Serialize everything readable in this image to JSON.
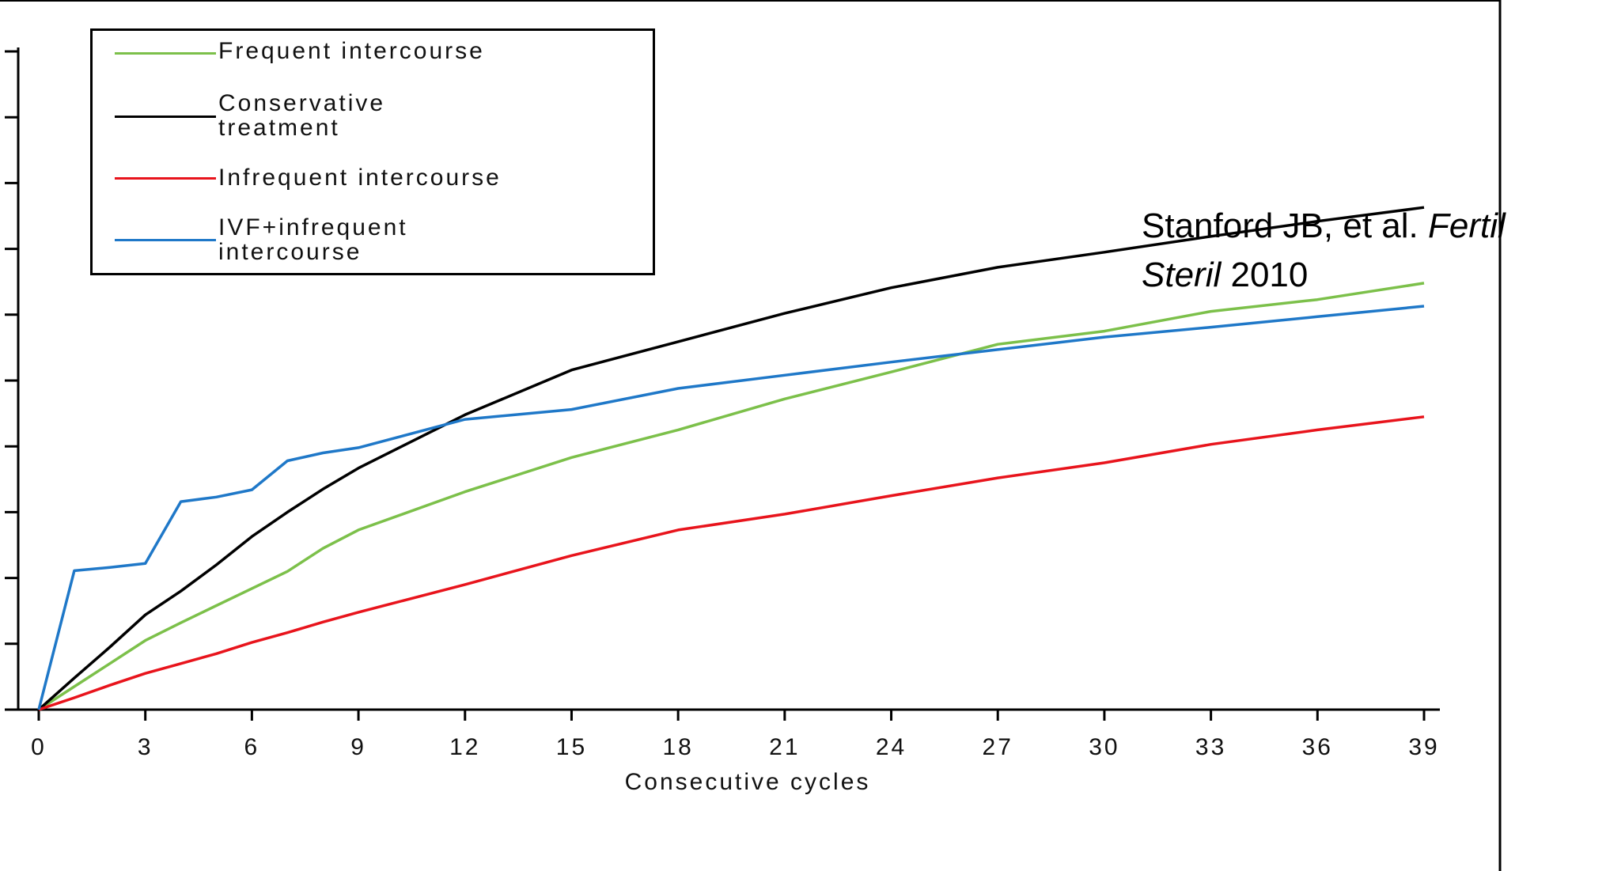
{
  "chart_data": {
    "type": "line",
    "xlabel": "Consecutive cycles",
    "x": [
      0,
      1,
      2,
      3,
      4,
      5,
      6,
      7,
      8,
      9,
      12,
      15,
      18,
      21,
      24,
      27,
      30,
      33,
      36,
      39
    ],
    "series": [
      {
        "name": "Frequent intercourse",
        "color": "#7cc04a",
        "values": [
          0,
          0.35,
          0.7,
          1.05,
          1.32,
          1.58,
          1.84,
          2.1,
          2.45,
          2.73,
          3.31,
          3.83,
          4.25,
          4.72,
          5.13,
          5.55,
          5.75,
          6.05,
          6.23,
          6.48
        ]
      },
      {
        "name": "Conservative\ntreatment",
        "color": "#000000",
        "values": [
          0,
          0.48,
          0.95,
          1.44,
          1.8,
          2.2,
          2.63,
          3.0,
          3.35,
          3.67,
          4.48,
          5.16,
          5.59,
          6.02,
          6.41,
          6.72,
          6.95,
          7.19,
          7.42,
          7.63
        ]
      },
      {
        "name": "Infrequent intercourse",
        "color": "#e8141c",
        "values": [
          0,
          0.18,
          0.37,
          0.55,
          0.7,
          0.85,
          1.02,
          1.17,
          1.33,
          1.48,
          1.9,
          2.34,
          2.73,
          2.97,
          3.25,
          3.52,
          3.75,
          4.03,
          4.25,
          4.45
        ]
      },
      {
        "name": "IVF+infrequent\nintercourse",
        "color": "#1f78c8",
        "values": [
          0,
          2.11,
          2.16,
          2.22,
          3.16,
          3.23,
          3.34,
          3.78,
          3.9,
          3.98,
          4.41,
          4.56,
          4.88,
          5.08,
          5.28,
          5.47,
          5.66,
          5.81,
          5.97,
          6.13
        ]
      }
    ],
    "xlim": [
      0,
      39
    ],
    "xticks": [
      0,
      3,
      6,
      9,
      12,
      15,
      18,
      21,
      24,
      27,
      30,
      33,
      36,
      39
    ],
    "ylim": [
      0,
      10
    ],
    "yticks": [
      0,
      1,
      2,
      3,
      4,
      5,
      6,
      7,
      8,
      9,
      10
    ],
    "annotation": {
      "authors": "Stanford JB, et al.",
      "journal": "Fertil\nSteril",
      "year": "2010"
    }
  }
}
